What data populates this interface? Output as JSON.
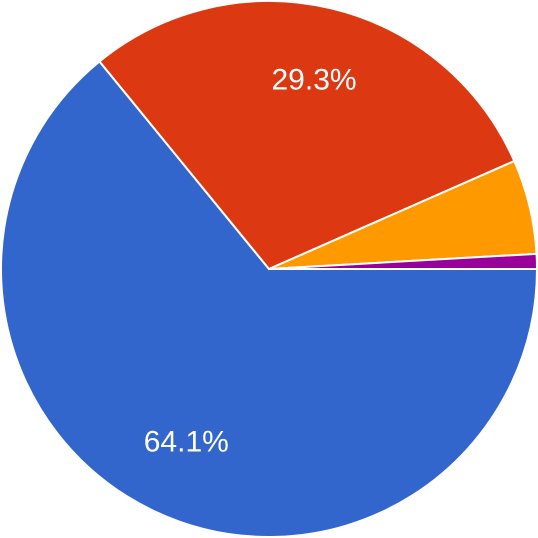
{
  "chart_data": {
    "type": "pie",
    "values": [
      64.1,
      29.3,
      5.7,
      0.9
    ],
    "value_labels": [
      "64.1%",
      "29.3%",
      null,
      null
    ],
    "colors": [
      "#3366cc",
      "#dc3912",
      "#ff9900",
      "#990099"
    ]
  }
}
